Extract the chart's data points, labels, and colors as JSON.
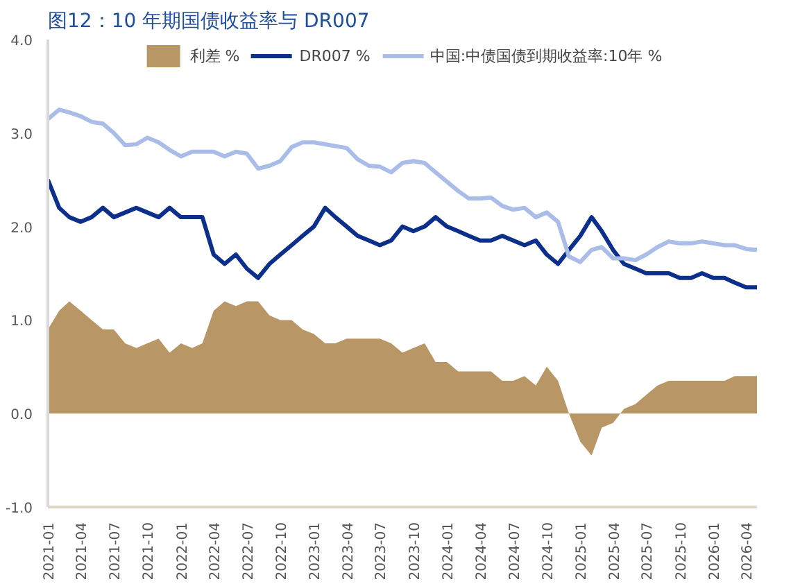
{
  "chart_data": {
    "type": "line",
    "title": "图12：10 年期国债收益率与 DR007",
    "x": [
      "2021-01-01",
      "2021-02-01",
      "2021-03-01",
      "2021-04-01",
      "2021-05-01",
      "2021-06-01",
      "2021-07-01",
      "2021-08-01",
      "2021-09-01",
      "2021-10-01",
      "2021-11-01",
      "2021-12-01",
      "2022-01-01",
      "2022-02-01",
      "2022-03-01",
      "2022-04-01",
      "2022-05-01",
      "2022-06-01",
      "2022-07-01",
      "2022-08-01",
      "2022-09-01",
      "2022-10-01",
      "2022-11-01",
      "2022-12-01",
      "2023-01-01",
      "2023-02-01",
      "2023-03-01",
      "2023-04-01",
      "2023-05-01",
      "2023-06-01",
      "2023-07-01",
      "2023-08-01",
      "2023-09-01",
      "2023-10-01",
      "2023-11-01",
      "2023-12-01",
      "2024-01-01",
      "2024-02-01",
      "2024-03-01",
      "2024-04-01",
      "2024-05-01",
      "2024-06-01",
      "2024-07-01",
      "2024-08-01",
      "2024-09-01",
      "2024-10-01",
      "2024-11-01",
      "2024-12-01",
      "2025-01-01",
      "2025-02-01",
      "2025-03-01",
      "2025-04-01",
      "2025-05-01",
      "2025-06-01",
      "2025-07-01",
      "2025-08-01",
      "2025-09-01",
      "2025-10-01",
      "2025-11-01",
      "2025-12-01",
      "2026-01-01",
      "2026-02-01",
      "2026-03-01",
      "2026-04-01",
      "2026-05-01"
    ],
    "series": [
      {
        "name": "利差 %",
        "type": "area",
        "color": "#b89665",
        "values": [
          0.9,
          1.1,
          1.2,
          1.1,
          1.0,
          0.9,
          0.9,
          0.75,
          0.7,
          0.75,
          0.8,
          0.65,
          0.75,
          0.7,
          0.75,
          1.1,
          1.2,
          1.15,
          1.2,
          1.2,
          1.05,
          1.0,
          1.0,
          0.9,
          0.85,
          0.75,
          0.75,
          0.8,
          0.8,
          0.8,
          0.8,
          0.75,
          0.65,
          0.7,
          0.75,
          0.55,
          0.55,
          0.45,
          0.45,
          0.45,
          0.45,
          0.35,
          0.35,
          0.4,
          0.3,
          0.5,
          0.35,
          0.0,
          -0.3,
          -0.45,
          -0.15,
          -0.1,
          0.05,
          0.1,
          0.2,
          0.3,
          0.35,
          0.35,
          0.35,
          0.35,
          0.35,
          0.35,
          0.4,
          0.4,
          0.4
        ]
      },
      {
        "name": "DR007 %",
        "color": "#0b2f8a",
        "values": [
          2.5,
          2.2,
          2.1,
          2.05,
          2.1,
          2.2,
          2.1,
          2.15,
          2.2,
          2.15,
          2.1,
          2.2,
          2.1,
          2.1,
          2.1,
          1.7,
          1.6,
          1.7,
          1.55,
          1.45,
          1.6,
          1.7,
          1.8,
          1.9,
          2.0,
          2.2,
          2.1,
          2.0,
          1.9,
          1.85,
          1.8,
          1.85,
          2.0,
          1.95,
          2.0,
          2.1,
          2.0,
          1.95,
          1.9,
          1.85,
          1.85,
          1.9,
          1.85,
          1.8,
          1.85,
          1.7,
          1.6,
          1.75,
          1.9,
          2.1,
          1.95,
          1.75,
          1.6,
          1.55,
          1.5,
          1.5,
          1.5,
          1.45,
          1.45,
          1.5,
          1.45,
          1.45,
          1.4,
          1.35,
          1.35
        ]
      },
      {
        "name": "中国:中债国债到期收益率:10年 %",
        "color": "#a9bde8",
        "values": [
          3.15,
          3.25,
          3.22,
          3.18,
          3.12,
          3.1,
          3.0,
          2.87,
          2.88,
          2.95,
          2.9,
          2.82,
          2.75,
          2.8,
          2.8,
          2.8,
          2.75,
          2.8,
          2.78,
          2.62,
          2.65,
          2.7,
          2.85,
          2.9,
          2.9,
          2.88,
          2.86,
          2.84,
          2.72,
          2.65,
          2.64,
          2.58,
          2.68,
          2.7,
          2.68,
          2.58,
          2.48,
          2.38,
          2.3,
          2.3,
          2.31,
          2.22,
          2.18,
          2.2,
          2.1,
          2.15,
          2.05,
          1.68,
          1.62,
          1.75,
          1.78,
          1.66,
          1.66,
          1.64,
          1.7,
          1.78,
          1.84,
          1.82,
          1.82,
          1.84,
          1.82,
          1.8,
          1.8,
          1.76,
          1.75
        ]
      }
    ],
    "xlim": [
      "2021-01-01",
      "2026-05-01"
    ],
    "xticks": [
      {
        "value": "2021-01-01",
        "label": "2021-01"
      },
      {
        "value": "2021-04-01",
        "label": "2021-04"
      },
      {
        "value": "2021-07-01",
        "label": "2021-07"
      },
      {
        "value": "2021-10-01",
        "label": "2021-10"
      },
      {
        "value": "2022-01-01",
        "label": "2022-01"
      },
      {
        "value": "2022-04-01",
        "label": "2022-04"
      },
      {
        "value": "2022-07-01",
        "label": "2022-07"
      },
      {
        "value": "2022-10-01",
        "label": "2022-10"
      },
      {
        "value": "2023-01-01",
        "label": "2023-01"
      },
      {
        "value": "2023-04-01",
        "label": "2023-04"
      },
      {
        "value": "2023-07-01",
        "label": "2023-07"
      },
      {
        "value": "2023-10-01",
        "label": "2023-10"
      },
      {
        "value": "2024-01-01",
        "label": "2024-01"
      },
      {
        "value": "2024-04-01",
        "label": "2024-04"
      },
      {
        "value": "2024-07-01",
        "label": "2024-07"
      },
      {
        "value": "2024-10-01",
        "label": "2024-10"
      },
      {
        "value": "2025-01-01",
        "label": "2025-01"
      },
      {
        "value": "2025-04-01",
        "label": "2025-04"
      },
      {
        "value": "2025-07-01",
        "label": "2025-07"
      },
      {
        "value": "2025-10-01",
        "label": "2025-10"
      },
      {
        "value": "2026-01-01",
        "label": "2026-01"
      },
      {
        "value": "2026-04-01",
        "label": "2026-04"
      }
    ],
    "ylim": [
      -1,
      4
    ],
    "yticks": [
      {
        "value": -1,
        "label": "-1.0"
      },
      {
        "value": 0,
        "label": "0.0"
      },
      {
        "value": 1,
        "label": "1.0"
      },
      {
        "value": 2,
        "label": "2.0"
      },
      {
        "value": 3,
        "label": "3.0"
      },
      {
        "value": 4,
        "label": "4.0"
      }
    ],
    "legend": "top",
    "grid": false
  }
}
